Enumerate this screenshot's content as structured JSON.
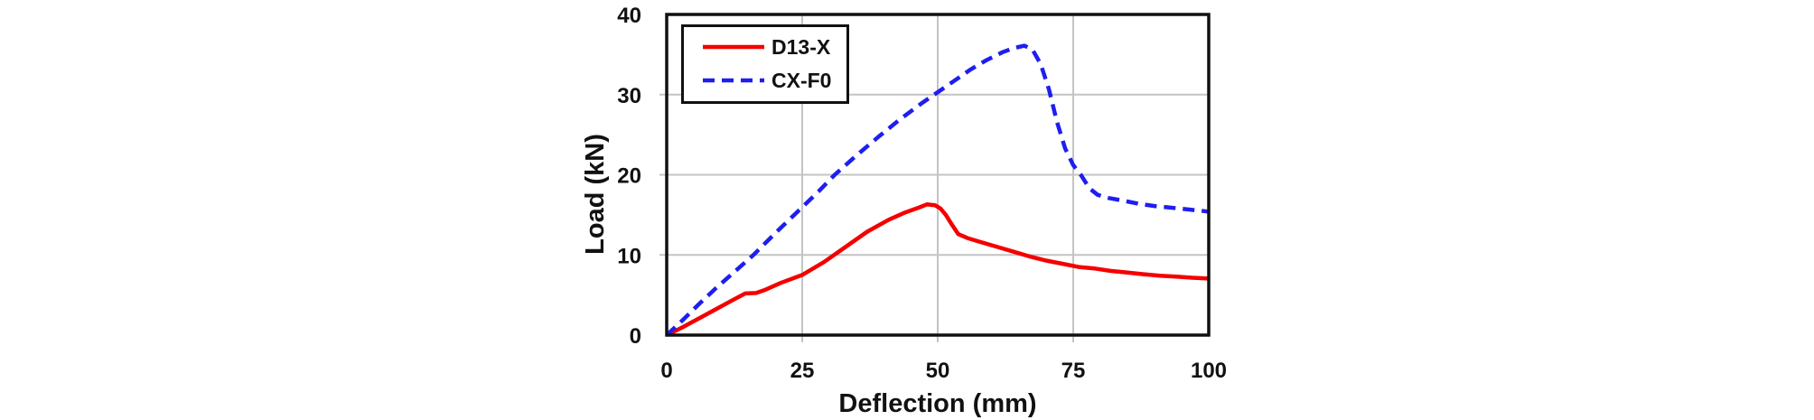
{
  "chart_data": {
    "type": "line",
    "title": "",
    "xlabel": "Deflection (mm)",
    "ylabel": "Load (kN)",
    "xlim": [
      0,
      100
    ],
    "ylim": [
      0,
      40
    ],
    "xticks": [
      0,
      25,
      50,
      75,
      100
    ],
    "yticks": [
      0,
      10,
      20,
      30,
      40
    ],
    "xtick_labels": [
      "0",
      "25",
      "50",
      "75",
      "100"
    ],
    "ytick_labels": [
      "0",
      "10",
      "20",
      "30",
      "40"
    ],
    "grid": true,
    "legend_position": "upper-left-inside",
    "series": [
      {
        "name": "D13-X",
        "color": "#f40000",
        "style": "solid",
        "points": [
          [
            0,
            0
          ],
          [
            3,
            1.0
          ],
          [
            6,
            2.1
          ],
          [
            9,
            3.2
          ],
          [
            12,
            4.3
          ],
          [
            14.5,
            5.2
          ],
          [
            16.5,
            5.25
          ],
          [
            18,
            5.6
          ],
          [
            21,
            6.5
          ],
          [
            25,
            7.5
          ],
          [
            29,
            9.1
          ],
          [
            33,
            11.0
          ],
          [
            37,
            12.9
          ],
          [
            41,
            14.4
          ],
          [
            44,
            15.3
          ],
          [
            46.5,
            15.9
          ],
          [
            48,
            16.3
          ],
          [
            49.5,
            16.2
          ],
          [
            50.5,
            15.8
          ],
          [
            51.5,
            15.0
          ],
          [
            52.5,
            13.9
          ],
          [
            53.8,
            12.6
          ],
          [
            55.5,
            12.1
          ],
          [
            58,
            11.6
          ],
          [
            61,
            11.0
          ],
          [
            64,
            10.4
          ],
          [
            67,
            9.8
          ],
          [
            70,
            9.3
          ],
          [
            73,
            8.9
          ],
          [
            76,
            8.5
          ],
          [
            79,
            8.3
          ],
          [
            82,
            8.0
          ],
          [
            85,
            7.8
          ],
          [
            88,
            7.6
          ],
          [
            91,
            7.4
          ],
          [
            94,
            7.3
          ],
          [
            97,
            7.15
          ],
          [
            100,
            7.05
          ]
        ]
      },
      {
        "name": "CX-F0",
        "color": "#1e1ef0",
        "style": "dashed",
        "points": [
          [
            0,
            0
          ],
          [
            3,
            1.9
          ],
          [
            6,
            3.9
          ],
          [
            9,
            5.8
          ],
          [
            12,
            7.6
          ],
          [
            16,
            10.0
          ],
          [
            20,
            12.7
          ],
          [
            24,
            15.3
          ],
          [
            28,
            17.9
          ],
          [
            31,
            20.0
          ],
          [
            35,
            22.4
          ],
          [
            39,
            24.7
          ],
          [
            43,
            26.9
          ],
          [
            47,
            28.9
          ],
          [
            50,
            30.3
          ],
          [
            53,
            31.7
          ],
          [
            56,
            33.1
          ],
          [
            59,
            34.3
          ],
          [
            62,
            35.3
          ],
          [
            64,
            35.8
          ],
          [
            66,
            36.1
          ],
          [
            67.5,
            35.6
          ],
          [
            69,
            33.8
          ],
          [
            70.5,
            30.7
          ],
          [
            72,
            26.6
          ],
          [
            73.5,
            23.3
          ],
          [
            75,
            21.2
          ],
          [
            76.5,
            19.9
          ],
          [
            78,
            18.3
          ],
          [
            79.5,
            17.5
          ],
          [
            81.5,
            17.1
          ],
          [
            84,
            16.8
          ],
          [
            87,
            16.4
          ],
          [
            90,
            16.1
          ],
          [
            93,
            15.9
          ],
          [
            96,
            15.7
          ],
          [
            100,
            15.4
          ]
        ]
      }
    ]
  },
  "colors": {
    "grid": "#c4c4c4",
    "border": "#111111",
    "background": "#ffffff"
  }
}
